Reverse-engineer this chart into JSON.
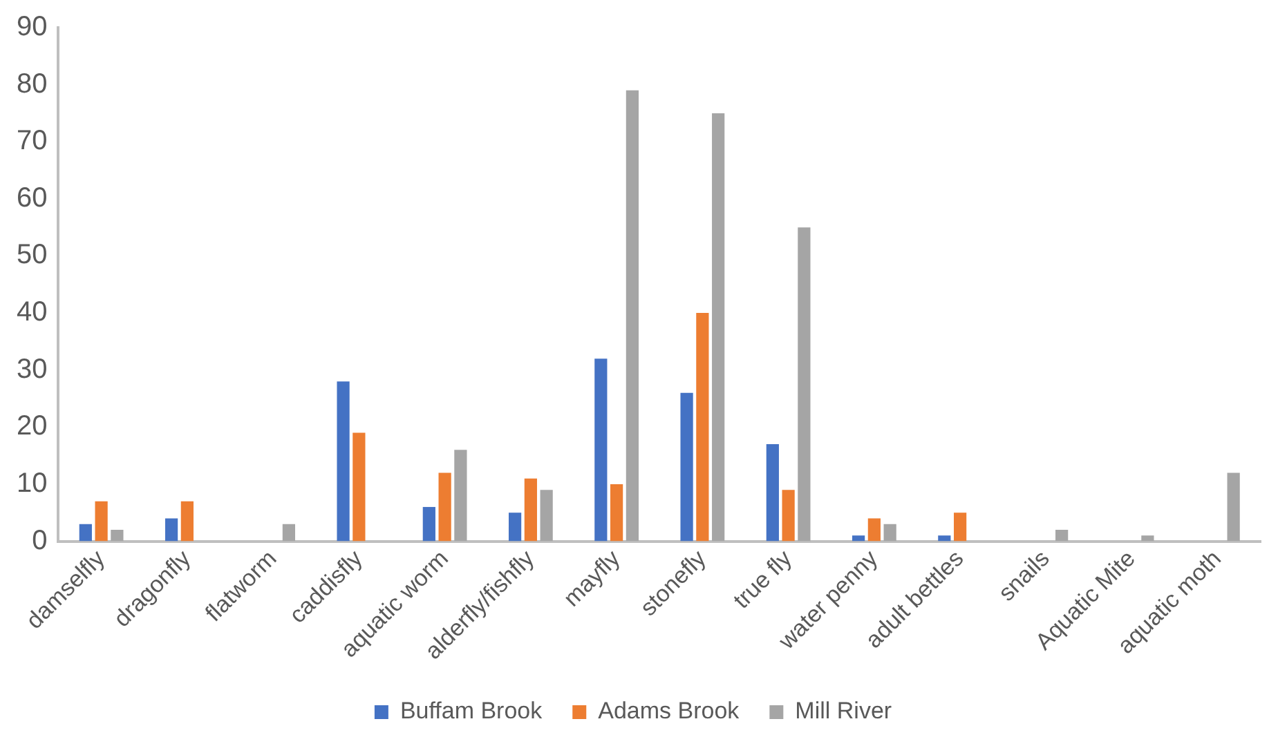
{
  "chart_data": {
    "type": "bar",
    "categories": [
      "damselfly",
      "dragonfly",
      "flatworm",
      "caddisfly",
      "aquatic worm",
      "alderfly/fishfly",
      "mayfly",
      "stonefly",
      "true fly",
      "water penny",
      "adult bettles",
      "snails",
      "Aquatic Mite",
      "aquatic moth"
    ],
    "series": [
      {
        "name": "Buffam Brook",
        "color": "#4472c4",
        "values": [
          3,
          4,
          0,
          28,
          6,
          5,
          32,
          26,
          17,
          1,
          1,
          0,
          0,
          0
        ]
      },
      {
        "name": "Adams Brook",
        "color": "#ed7d31",
        "values": [
          7,
          7,
          0,
          19,
          12,
          11,
          10,
          40,
          9,
          4,
          5,
          0,
          0,
          0
        ]
      },
      {
        "name": "Mill River",
        "color": "#a5a5a5",
        "values": [
          2,
          0,
          3,
          0,
          16,
          9,
          79,
          75,
          55,
          3,
          0,
          2,
          1,
          12
        ]
      }
    ],
    "ylim": [
      0,
      90
    ],
    "yticks": [
      0,
      10,
      20,
      30,
      40,
      50,
      60,
      70,
      80,
      90
    ],
    "grid": false,
    "legend": "bottom"
  }
}
